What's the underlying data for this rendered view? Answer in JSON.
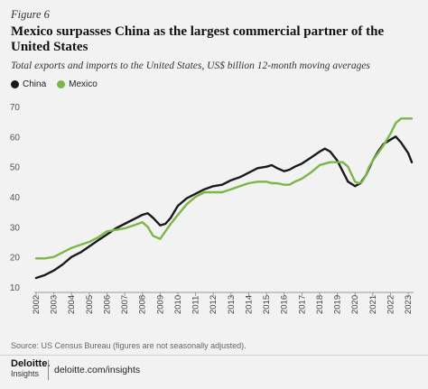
{
  "figure_label": "Figure 6",
  "title": "Mexico surpasses China as the largest commercial partner of the United States",
  "subtitle": "Total exports and imports to the United States, US$ billion 12-month moving averages",
  "source": "Source: US Census Bureau (figures are not seasonally adjusted).",
  "footer": {
    "brand": "Deloitte.",
    "brand_sub": "Insights",
    "url": "deloitte.com/insights"
  },
  "chart_data": {
    "type": "line",
    "title": "",
    "xlabel": "",
    "ylabel": "",
    "xlim": [
      2002,
      2023.2
    ],
    "ylim": [
      10,
      70
    ],
    "yticks": [
      10,
      20,
      30,
      40,
      50,
      60,
      70
    ],
    "xticks": [
      "2002",
      "2003",
      "2004",
      "2005",
      "2006",
      "2007",
      "2008",
      "2009",
      "2010",
      "2011",
      "2012",
      "2013",
      "2014",
      "2015",
      "2016",
      "2017",
      "2018",
      "2019",
      "2020",
      "2021",
      "2022",
      "2023"
    ],
    "grid": false,
    "legend": "top-left",
    "series": [
      {
        "name": "China",
        "color": "#1a1a1a",
        "x": [
          2002.0,
          2002.5,
          2003.0,
          2003.5,
          2004.0,
          2004.5,
          2005.0,
          2005.5,
          2006.0,
          2006.5,
          2007.0,
          2007.5,
          2008.0,
          2008.3,
          2008.6,
          2009.0,
          2009.3,
          2009.6,
          2010.0,
          2010.5,
          2011.0,
          2011.5,
          2012.0,
          2012.5,
          2013.0,
          2013.5,
          2014.0,
          2014.5,
          2015.0,
          2015.3,
          2015.6,
          2016.0,
          2016.3,
          2016.6,
          2017.0,
          2017.5,
          2018.0,
          2018.3,
          2018.6,
          2019.0,
          2019.3,
          2019.6,
          2020.0,
          2020.3,
          2020.6,
          2021.0,
          2021.3,
          2021.6,
          2022.0,
          2022.3,
          2022.6,
          2023.0,
          2023.2
        ],
        "values": [
          13,
          14,
          15.5,
          17.5,
          20,
          21.5,
          23.5,
          25.5,
          27.5,
          29.5,
          31,
          32.5,
          34,
          34.5,
          33,
          30.5,
          31,
          33,
          37,
          39.5,
          41,
          42.5,
          43.5,
          44,
          45.5,
          46.5,
          48,
          49.5,
          50,
          50.5,
          49.5,
          48.5,
          49,
          50,
          51,
          53,
          55,
          56,
          55,
          52,
          48.5,
          45,
          43.5,
          44.5,
          47,
          52,
          55,
          57.5,
          59,
          60,
          58,
          54.5,
          51.5
        ]
      },
      {
        "name": "Mexico",
        "color": "#7ab648",
        "x": [
          2002.0,
          2002.5,
          2003.0,
          2003.5,
          2004.0,
          2004.5,
          2005.0,
          2005.5,
          2006.0,
          2006.5,
          2007.0,
          2007.5,
          2008.0,
          2008.3,
          2008.6,
          2009.0,
          2009.3,
          2009.6,
          2010.0,
          2010.5,
          2011.0,
          2011.5,
          2012.0,
          2012.5,
          2013.0,
          2013.5,
          2014.0,
          2014.5,
          2015.0,
          2015.3,
          2015.6,
          2016.0,
          2016.3,
          2016.6,
          2017.0,
          2017.5,
          2018.0,
          2018.3,
          2018.6,
          2019.0,
          2019.3,
          2019.6,
          2020.0,
          2020.2,
          2020.4,
          2020.6,
          2020.8,
          2021.0,
          2021.3,
          2021.6,
          2022.0,
          2022.3,
          2022.6,
          2023.0,
          2023.2
        ],
        "values": [
          19.5,
          19.5,
          20,
          21.5,
          23,
          24,
          25,
          26.5,
          28.5,
          29,
          29.5,
          30.5,
          31.5,
          30,
          27,
          26,
          28.5,
          31,
          34,
          37.5,
          40,
          41.5,
          41.5,
          41.5,
          42.5,
          43.5,
          44.5,
          45,
          45,
          44.5,
          44.5,
          44,
          44,
          45,
          46,
          48,
          50.5,
          51,
          51.5,
          51.5,
          51.5,
          50,
          45,
          44.5,
          45,
          47,
          50,
          52,
          54.5,
          57,
          61,
          64.5,
          66,
          66,
          66
        ]
      }
    ]
  }
}
